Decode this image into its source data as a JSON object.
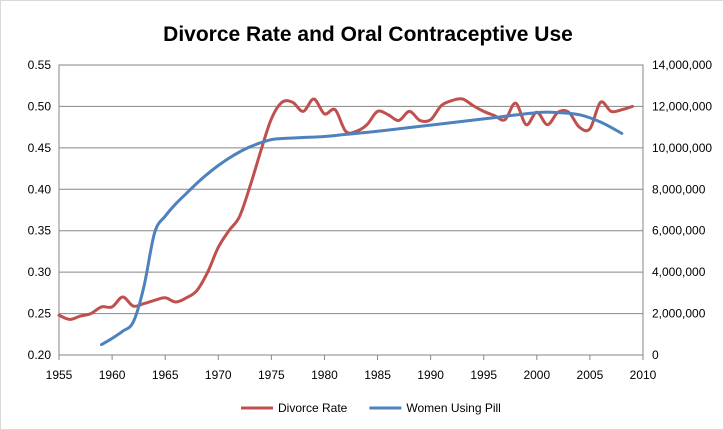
{
  "chart_data": {
    "type": "line",
    "title": "Divorce Rate and Oral Contraceptive Use",
    "x_ticks": [
      "1955",
      "1960",
      "1965",
      "1970",
      "1975",
      "1980",
      "1985",
      "1990",
      "1995",
      "2000",
      "2005",
      "2010"
    ],
    "y_left_ticks": [
      "0.20",
      "0.25",
      "0.30",
      "0.35",
      "0.40",
      "0.45",
      "0.50",
      "0.55"
    ],
    "y_right_ticks": [
      "0",
      "2,000,000",
      "4,000,000",
      "6,000,000",
      "8,000,000",
      "10,000,000",
      "12,000,000",
      "14,000,000"
    ],
    "xlim": [
      1955,
      2010
    ],
    "ylim_left": [
      0.2,
      0.55
    ],
    "ylim_right": [
      0,
      14000000
    ],
    "grid": "horizontal",
    "legend_position": "bottom",
    "series": [
      {
        "name": "Divorce Rate",
        "axis": "left",
        "color": "#c0504d",
        "x": [
          1955,
          1956,
          1957,
          1958,
          1959,
          1960,
          1961,
          1962,
          1963,
          1964,
          1965,
          1966,
          1967,
          1968,
          1969,
          1970,
          1971,
          1972,
          1973,
          1974,
          1975,
          1976,
          1977,
          1978,
          1979,
          1980,
          1981,
          1982,
          1983,
          1984,
          1985,
          1986,
          1987,
          1988,
          1989,
          1990,
          1991,
          1992,
          1993,
          1994,
          1995,
          1996,
          1997,
          1998,
          1999,
          2000,
          2001,
          2002,
          2003,
          2004,
          2005,
          2006,
          2007,
          2008,
          2009
        ],
        "values": [
          0.248,
          0.243,
          0.247,
          0.25,
          0.258,
          0.258,
          0.27,
          0.259,
          0.262,
          0.266,
          0.269,
          0.264,
          0.269,
          0.278,
          0.3,
          0.33,
          0.35,
          0.367,
          0.404,
          0.446,
          0.485,
          0.505,
          0.505,
          0.494,
          0.509,
          0.491,
          0.496,
          0.47,
          0.47,
          0.478,
          0.494,
          0.49,
          0.483,
          0.494,
          0.483,
          0.484,
          0.501,
          0.507,
          0.509,
          0.501,
          0.494,
          0.489,
          0.484,
          0.504,
          0.478,
          0.493,
          0.478,
          0.493,
          0.493,
          0.475,
          0.473,
          0.505,
          0.494,
          0.496,
          0.5
        ]
      },
      {
        "name": "Women Using Pill",
        "axis": "right",
        "color": "#4f81bd",
        "x": [
          1959,
          1960,
          1961,
          1962,
          1963,
          1964,
          1965,
          1966,
          1967,
          1968,
          1969,
          1970,
          1971,
          1972,
          1973,
          1974,
          1975,
          1976,
          1978,
          1980,
          1982,
          1985,
          1990,
          1995,
          2000,
          2002,
          2004,
          2006,
          2008
        ],
        "values": [
          500000,
          800000,
          1150000,
          1600000,
          3300000,
          5900000,
          6700000,
          7300000,
          7800000,
          8300000,
          8750000,
          9150000,
          9500000,
          9800000,
          10050000,
          10250000,
          10400000,
          10450000,
          10500000,
          10550000,
          10650000,
          10800000,
          11100000,
          11400000,
          11700000,
          11700000,
          11600000,
          11250000,
          10700000
        ]
      }
    ]
  }
}
